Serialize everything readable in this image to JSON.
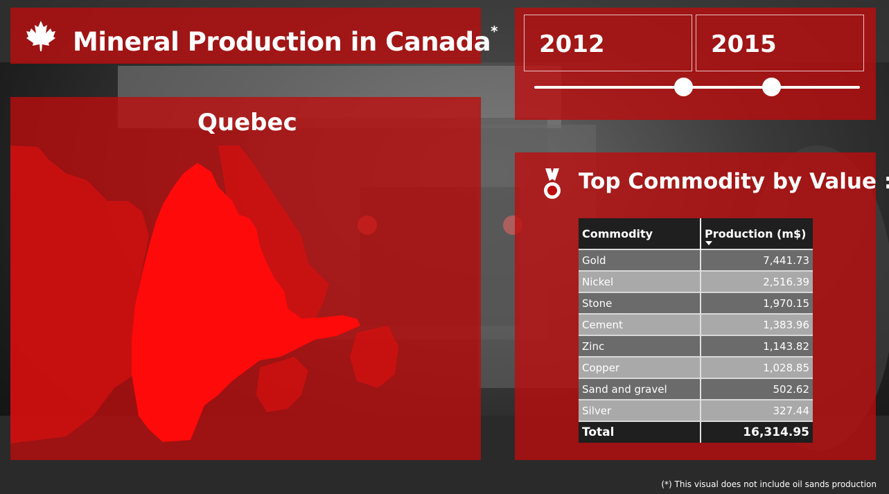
{
  "header": {
    "title": "Mineral Production in Canada",
    "title_asterisk": "*",
    "icon": "maple-leaf-icon"
  },
  "year_slider": {
    "start_year": "2012",
    "end_year": "2015"
  },
  "map": {
    "province": "Quebec",
    "highlight_color": "#ff0a0a"
  },
  "commodity_table": {
    "title": "Top Commodity by Value :",
    "icon": "medal-icon",
    "columns": [
      "Commodity",
      "Production (m$)"
    ],
    "rows": [
      {
        "commodity": "Gold",
        "production": "7,441.73"
      },
      {
        "commodity": "Nickel",
        "production": "2,516.39"
      },
      {
        "commodity": "Stone",
        "production": "1,970.15"
      },
      {
        "commodity": "Cement",
        "production": "1,383.96"
      },
      {
        "commodity": "Zinc",
        "production": "1,143.82"
      },
      {
        "commodity": "Copper",
        "production": "1,028.85"
      },
      {
        "commodity": "Sand and gravel",
        "production": "502.62"
      },
      {
        "commodity": "Silver",
        "production": "327.44"
      }
    ],
    "total_label": "Total",
    "total_value": "16,314.95"
  },
  "footnote": "(*) This visual does not include oil sands production",
  "colors": {
    "panel": "#be0c0c",
    "table_header": "#1f1f1f",
    "row_dark": "#6b6b6b",
    "row_light": "#a9a9a9"
  }
}
